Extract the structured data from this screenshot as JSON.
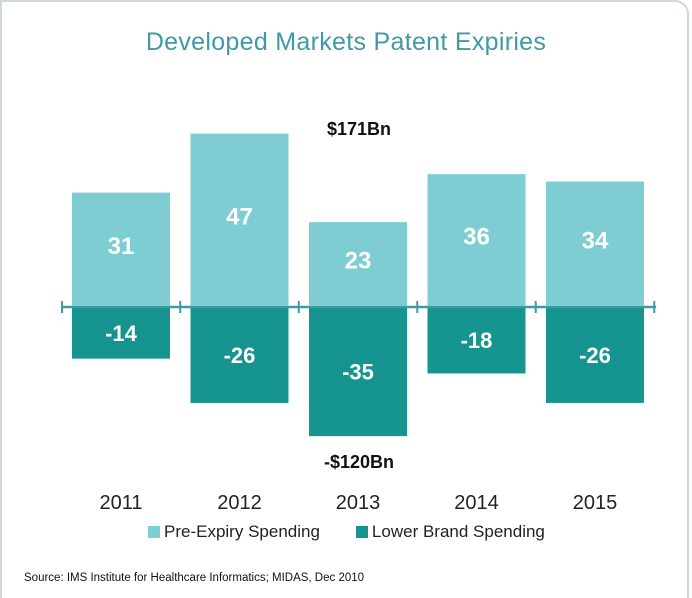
{
  "title": "Developed Markets Patent Expiries",
  "source": "Source: IMS Institute for Healthcare Informatics; MIDAS, Dec 2010",
  "colors": {
    "pre_expiry": "#7ecdd3",
    "lower_brand": "#16948f",
    "axis": "#3f9aa6",
    "title": "#3f9aa6"
  },
  "chart_data": {
    "type": "bar",
    "title": "Developed Markets Patent Expiries",
    "categories": [
      "2011",
      "2012",
      "2013",
      "2014",
      "2015"
    ],
    "series": [
      {
        "name": "Pre-Expiry Spending",
        "values": [
          31,
          47,
          23,
          36,
          34
        ],
        "labels": [
          "31",
          "47",
          "23",
          "36",
          "34"
        ]
      },
      {
        "name": "Lower Brand Spending",
        "values": [
          -14,
          -26,
          -35,
          -18,
          -26
        ],
        "labels": [
          "-14",
          "-26",
          "-35",
          "-18",
          "-26"
        ]
      }
    ],
    "annotations": {
      "positive_total": "$171Bn",
      "negative_total": "-$120Bn"
    },
    "stacked": true,
    "ylim": [
      -35,
      47
    ],
    "grid": false,
    "legend": "bottom"
  }
}
